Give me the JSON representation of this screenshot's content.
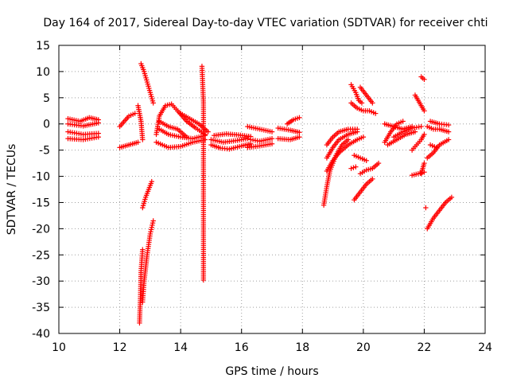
{
  "chart_data": {
    "type": "scatter",
    "title": "Day 164 of 2017, Sidereal Day-to-day VTEC variation (SDTVAR) for receiver chti",
    "xlabel": "GPS time / hours",
    "ylabel": "SDTVAR / TECUs",
    "xlim": [
      10,
      24
    ],
    "ylim": [
      -40,
      15
    ],
    "xticks": [
      10,
      12,
      14,
      16,
      18,
      20,
      22,
      24
    ],
    "yticks": [
      -40,
      -35,
      -30,
      -25,
      -20,
      -15,
      -10,
      -5,
      0,
      5,
      10,
      15
    ],
    "grid": true,
    "marker": "plus",
    "color": "#ff0000",
    "series": [
      {
        "tracks": [
          [
            [
              10.3,
              1.0
            ],
            [
              10.7,
              0.5
            ],
            [
              11.0,
              1.2
            ],
            [
              11.3,
              0.8
            ]
          ],
          [
            [
              10.3,
              0.0
            ],
            [
              10.8,
              -0.4
            ],
            [
              11.3,
              0.2
            ]
          ],
          [
            [
              10.3,
              -1.5
            ],
            [
              10.8,
              -2.0
            ],
            [
              11.3,
              -1.8
            ]
          ],
          [
            [
              10.3,
              -2.8
            ],
            [
              10.8,
              -3.0
            ],
            [
              11.3,
              -2.5
            ]
          ],
          [
            [
              12.0,
              -0.5
            ],
            [
              12.3,
              1.5
            ],
            [
              12.5,
              2.0
            ]
          ],
          [
            [
              12.0,
              -4.5
            ],
            [
              12.3,
              -4.0
            ],
            [
              12.6,
              -3.5
            ]
          ],
          [
            [
              12.6,
              3.5
            ],
            [
              12.7,
              0.5
            ],
            [
              12.75,
              -3.0
            ]
          ],
          [
            [
              12.7,
              11.5
            ],
            [
              12.8,
              10.0
            ],
            [
              12.9,
              8.0
            ],
            [
              13.0,
              6.0
            ],
            [
              13.1,
              4.0
            ]
          ],
          [
            [
              12.65,
              -38.0
            ],
            [
              12.68,
              -33.0
            ],
            [
              12.7,
              -28.0
            ],
            [
              12.75,
              -24.0
            ]
          ],
          [
            [
              12.75,
              -34.0
            ],
            [
              12.8,
              -30.0
            ],
            [
              12.9,
              -25.0
            ],
            [
              13.0,
              -21.0
            ],
            [
              13.1,
              -18.5
            ]
          ],
          [
            [
              12.75,
              -16.0
            ],
            [
              12.85,
              -14.0
            ],
            [
              12.95,
              -12.5
            ],
            [
              13.05,
              -11.0
            ]
          ],
          [
            [
              13.2,
              -2.0
            ],
            [
              13.3,
              1.5
            ],
            [
              13.5,
              3.5
            ],
            [
              13.7,
              3.8
            ],
            [
              13.9,
              2.5
            ],
            [
              14.2,
              0.5
            ],
            [
              14.5,
              -0.8
            ],
            [
              14.8,
              -2.0
            ]
          ],
          [
            [
              13.3,
              -1.0
            ],
            [
              13.6,
              -2.0
            ],
            [
              14.0,
              -2.5
            ],
            [
              14.4,
              -2.8
            ],
            [
              14.8,
              -2.2
            ]
          ],
          [
            [
              13.2,
              -3.5
            ],
            [
              13.6,
              -4.5
            ],
            [
              14.0,
              -4.3
            ],
            [
              14.4,
              -3.5
            ],
            [
              14.8,
              -3.0
            ]
          ],
          [
            [
              13.3,
              0.5
            ],
            [
              13.6,
              -0.5
            ],
            [
              13.9,
              -1.0
            ],
            [
              14.2,
              -2.5
            ]
          ],
          [
            [
              14.0,
              2.0
            ],
            [
              14.3,
              1.0
            ],
            [
              14.6,
              0.0
            ],
            [
              14.9,
              -1.5
            ]
          ],
          [
            [
              14.7,
              11.0
            ],
            [
              14.75,
              4.0
            ],
            [
              14.75,
              -18.5
            ],
            [
              14.75,
              -29.8
            ]
          ],
          [
            [
              15.0,
              -3.0
            ],
            [
              15.4,
              -3.5
            ],
            [
              15.8,
              -3.2
            ],
            [
              16.2,
              -2.8
            ]
          ],
          [
            [
              15.0,
              -4.0
            ],
            [
              15.3,
              -4.6
            ],
            [
              15.6,
              -4.8
            ],
            [
              16.0,
              -4.2
            ],
            [
              16.3,
              -3.8
            ]
          ],
          [
            [
              15.1,
              -2.2
            ],
            [
              15.5,
              -1.9
            ],
            [
              15.9,
              -2.1
            ],
            [
              16.3,
              -2.4
            ]
          ],
          [
            [
              16.2,
              -0.5
            ],
            [
              16.6,
              -1.0
            ],
            [
              17.0,
              -1.5
            ]
          ],
          [
            [
              16.3,
              -3.0
            ],
            [
              16.6,
              -3.3
            ],
            [
              17.0,
              -2.8
            ]
          ],
          [
            [
              16.2,
              -4.5
            ],
            [
              16.6,
              -4.2
            ],
            [
              17.0,
              -3.8
            ]
          ],
          [
            [
              17.2,
              -0.8
            ],
            [
              17.6,
              -1.2
            ],
            [
              17.9,
              -1.6
            ]
          ],
          [
            [
              17.2,
              -2.8
            ],
            [
              17.6,
              -3.0
            ],
            [
              17.9,
              -2.5
            ]
          ],
          [
            [
              17.5,
              0.0
            ],
            [
              17.7,
              0.8
            ],
            [
              17.9,
              1.2
            ]
          ],
          [
            [
              18.7,
              -15.5
            ],
            [
              18.8,
              -12.0
            ],
            [
              18.9,
              -9.0
            ],
            [
              19.1,
              -6.0
            ],
            [
              19.3,
              -4.0
            ],
            [
              19.5,
              -3.0
            ]
          ],
          [
            [
              18.8,
              -9.0
            ],
            [
              19.0,
              -7.0
            ],
            [
              19.2,
              -5.5
            ],
            [
              19.5,
              -4.0
            ],
            [
              19.8,
              -3.0
            ],
            [
              20.0,
              -2.5
            ]
          ],
          [
            [
              18.8,
              -6.5
            ],
            [
              19.0,
              -4.5
            ],
            [
              19.2,
              -3.0
            ],
            [
              19.5,
              -2.0
            ],
            [
              19.8,
              -1.5
            ]
          ],
          [
            [
              18.8,
              -4.0
            ],
            [
              19.0,
              -2.5
            ],
            [
              19.2,
              -1.5
            ],
            [
              19.5,
              -1.0
            ],
            [
              19.8,
              -1.0
            ]
          ],
          [
            [
              19.7,
              -6.0
            ],
            [
              19.9,
              -6.5
            ],
            [
              20.1,
              -7.0
            ]
          ],
          [
            [
              19.6,
              7.5
            ],
            [
              19.75,
              6.0
            ],
            [
              19.85,
              4.5
            ],
            [
              19.95,
              4.0
            ]
          ],
          [
            [
              19.9,
              7.0
            ],
            [
              20.1,
              5.5
            ],
            [
              20.3,
              4.0
            ]
          ],
          [
            [
              19.6,
              4.0
            ],
            [
              19.8,
              3.0
            ],
            [
              20.0,
              2.5
            ],
            [
              20.2,
              2.5
            ],
            [
              20.4,
              2.0
            ]
          ],
          [
            [
              19.6,
              -8.5
            ],
            [
              19.75,
              -8.2
            ]
          ],
          [
            [
              19.7,
              -14.5
            ],
            [
              19.9,
              -13.0
            ],
            [
              20.1,
              -11.5
            ],
            [
              20.3,
              -10.5
            ]
          ],
          [
            [
              19.9,
              -9.5
            ],
            [
              20.1,
              -8.8
            ],
            [
              20.3,
              -8.5
            ],
            [
              20.5,
              -7.5
            ]
          ],
          [
            [
              20.7,
              -3.5
            ],
            [
              20.9,
              -1.5
            ],
            [
              21.1,
              0.0
            ],
            [
              21.3,
              0.5
            ]
          ],
          [
            [
              20.7,
              0.0
            ],
            [
              21.0,
              -0.5
            ],
            [
              21.3,
              -1.0
            ],
            [
              21.6,
              -0.5
            ]
          ],
          [
            [
              20.8,
              -4.0
            ],
            [
              21.1,
              -3.0
            ],
            [
              21.4,
              -2.0
            ],
            [
              21.7,
              -1.5
            ]
          ],
          [
            [
              21.0,
              -2.5
            ],
            [
              21.3,
              -1.5
            ],
            [
              21.6,
              -0.8
            ],
            [
              21.9,
              -0.5
            ]
          ],
          [
            [
              21.7,
              5.5
            ],
            [
              21.8,
              4.5
            ],
            [
              21.9,
              3.5
            ],
            [
              22.0,
              2.5
            ]
          ],
          [
            [
              21.9,
              9.0
            ],
            [
              22.0,
              8.5
            ]
          ],
          [
            [
              21.6,
              -5.0
            ],
            [
              21.75,
              -4.0
            ],
            [
              21.9,
              -3.0
            ],
            [
              22.0,
              -2.0
            ]
          ],
          [
            [
              21.9,
              -9.5
            ],
            [
              21.95,
              -8.5
            ],
            [
              22.0,
              -7.5
            ]
          ],
          [
            [
              21.6,
              -9.8
            ],
            [
              21.8,
              -9.5
            ],
            [
              22.0,
              -9.2
            ]
          ],
          [
            [
              22.1,
              -6.5
            ],
            [
              22.3,
              -5.5
            ],
            [
              22.5,
              -4.0
            ],
            [
              22.8,
              -3.0
            ]
          ],
          [
            [
              22.1,
              -0.5
            ],
            [
              22.3,
              -1.0
            ],
            [
              22.5,
              -1.0
            ],
            [
              22.8,
              -1.5
            ]
          ],
          [
            [
              22.2,
              0.5
            ],
            [
              22.5,
              0.0
            ],
            [
              22.8,
              -0.2
            ]
          ],
          [
            [
              22.2,
              -4.0
            ],
            [
              22.4,
              -4.5
            ]
          ],
          [
            [
              22.1,
              -20.0
            ],
            [
              22.3,
              -18.0
            ],
            [
              22.5,
              -16.5
            ],
            [
              22.7,
              -15.0
            ],
            [
              22.9,
              -14.0
            ]
          ],
          [
            [
              22.05,
              -16.0
            ]
          ]
        ]
      }
    ]
  }
}
